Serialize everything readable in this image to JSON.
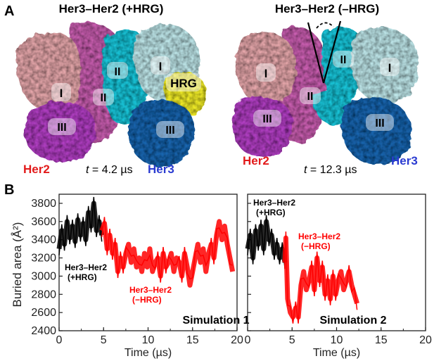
{
  "panel_a": {
    "letter": "A",
    "left": {
      "title": "Her3–Her2 (+HRG)",
      "her2_label": "Her2",
      "her3_label": "Her3",
      "time_prefix": "t",
      "time_value": " = 4.2 µs",
      "domains": [
        "I",
        "II",
        "I",
        "II",
        "HRG",
        "III",
        "III"
      ]
    },
    "right": {
      "title": "Her3–Her2 (–HRG)",
      "her2_label": "Her2",
      "her3_label": "Her3",
      "time_prefix": "t",
      "time_value": " = 12.3 µs",
      "domains": [
        "I",
        "II",
        "II",
        "I",
        "III",
        "III"
      ]
    },
    "colors": {
      "her2_domain_I": "#e6a7ab",
      "her2_domain_II": "#c95fb0",
      "her2_domain_III": "#b23fc4",
      "her3_domain_I": "#bfe7ea",
      "her3_domain_II": "#1ec6da",
      "her3_domain_III": "#1d66b0",
      "hrg": "#f3ee2a",
      "her2_text": "#e21b1b",
      "her3_text": "#2a3bd1"
    }
  },
  "panel_b": {
    "letter": "B",
    "ylabel": "Buried area (Å²)",
    "xlabel": "Time (µs)"
  },
  "chart_data": [
    {
      "type": "line",
      "title": "Simulation 1",
      "xlabel": "Time (µs)",
      "ylabel": "Buried area (Å²)",
      "xlim": [
        0,
        20
      ],
      "ylim": [
        2400,
        3900
      ],
      "xticks": [
        "0",
        "5",
        "10",
        "15",
        "20"
      ],
      "yticks": [
        "2400",
        "2600",
        "2800",
        "3000",
        "3200",
        "3400",
        "3600",
        "3800"
      ],
      "annotations": [
        {
          "text": "Her3–Her2",
          "text2": "(+HRG)",
          "color": "#000000"
        },
        {
          "text": "Her3–Her2",
          "text2": "(−HRG)",
          "color": "#ff0000"
        }
      ],
      "series": [
        {
          "name": "Her3–Her2 (+HRG)",
          "color": "#000000",
          "x": [
            0,
            0.3,
            0.6,
            0.9,
            1.2,
            1.5,
            1.8,
            2.1,
            2.4,
            2.7,
            3.0,
            3.3,
            3.6,
            3.9,
            4.2,
            4.5,
            4.8
          ],
          "y": [
            3300,
            3500,
            3350,
            3600,
            3420,
            3550,
            3380,
            3620,
            3450,
            3580,
            3400,
            3700,
            3550,
            3800,
            3500,
            3600,
            3450
          ]
        },
        {
          "name": "Her3–Her2 (−HRG)",
          "color": "#ff0000",
          "x": [
            4.8,
            5.1,
            5.4,
            5.7,
            6.0,
            6.3,
            6.6,
            6.9,
            7.2,
            7.5,
            7.8,
            8.1,
            8.4,
            8.7,
            9.0,
            9.3,
            9.6,
            9.9,
            10.2,
            10.5,
            10.8,
            11.1,
            11.4,
            11.7,
            12.0,
            12.3,
            12.6,
            12.9,
            13.2,
            13.5,
            13.8,
            14.1,
            14.4,
            14.7,
            15.0,
            15.3,
            15.6,
            15.9,
            16.2,
            16.5,
            16.8,
            17.1,
            17.4,
            17.7,
            18.0,
            18.3,
            18.6,
            18.9,
            19.2,
            19.5
          ],
          "y": [
            3500,
            3580,
            3300,
            3450,
            3250,
            3350,
            3050,
            3200,
            3100,
            3250,
            3350,
            3150,
            3300,
            3100,
            3200,
            3050,
            3250,
            3100,
            3300,
            3050,
            3150,
            3200,
            3000,
            3250,
            3100,
            3150,
            3250,
            3050,
            3200,
            3150,
            3000,
            3250,
            3100,
            2900,
            3050,
            3200,
            3350,
            3150,
            3300,
            3050,
            3250,
            3350,
            3200,
            3450,
            3600,
            3400,
            3550,
            3350,
            3200,
            3050
          ]
        }
      ]
    },
    {
      "type": "line",
      "title": "Simulation 2",
      "xlabel": "Time (µs)",
      "xlim": [
        0,
        20
      ],
      "ylim": [
        2400,
        3900
      ],
      "xticks": [
        "0",
        "5",
        "10",
        "15",
        "20"
      ],
      "annotations": [
        {
          "text": "Her3–Her2",
          "text2": "(+HRG)",
          "color": "#000000"
        },
        {
          "text": "Her3–Her2",
          "text2": "(−HRG)",
          "color": "#ff0000"
        }
      ],
      "series": [
        {
          "name": "Her3–Her2 (+HRG)",
          "color": "#000000",
          "x": [
            0,
            0.3,
            0.6,
            0.9,
            1.2,
            1.5,
            1.8,
            2.1,
            2.4,
            2.7,
            3.0,
            3.3,
            3.6,
            3.9,
            4.2
          ],
          "y": [
            3300,
            3450,
            3200,
            3500,
            3350,
            3550,
            3300,
            3600,
            3400,
            3450,
            3250,
            3350,
            3200,
            3300,
            3150
          ]
        },
        {
          "name": "Her3–Her2 (−HRG)",
          "color": "#ff0000",
          "x": [
            4.2,
            4.3,
            4.5,
            4.8,
            5.1,
            5.4,
            5.7,
            6.0,
            6.3,
            6.6,
            6.9,
            7.2,
            7.5,
            7.8,
            8.1,
            8.4,
            8.7,
            9.0,
            9.3,
            9.6,
            9.9,
            10.2,
            10.5,
            10.8,
            11.1,
            11.4,
            11.7,
            12.0,
            12.3
          ],
          "y": [
            3150,
            3420,
            2750,
            2600,
            2550,
            2650,
            2550,
            2900,
            3050,
            2850,
            2950,
            3100,
            2850,
            3200,
            2950,
            3100,
            2800,
            2950,
            2750,
            3000,
            2800,
            2950,
            3050,
            2850,
            2950,
            3050,
            2900,
            2800,
            2700
          ]
        }
      ]
    }
  ]
}
